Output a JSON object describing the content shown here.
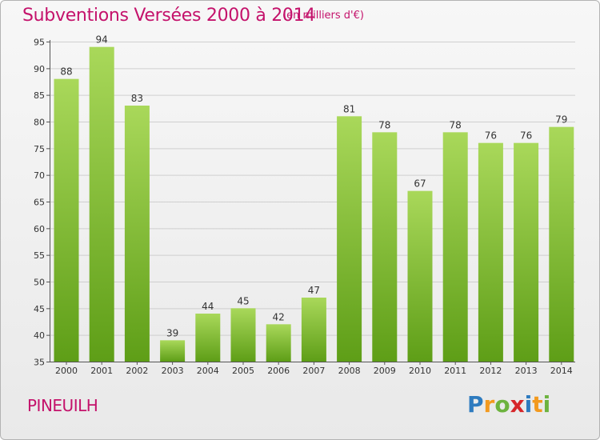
{
  "header": {
    "title": "Subventions Versées 2000 à 2014",
    "subtitle": "(en milliers d'€)"
  },
  "footer": {
    "commune": "PINEUILH",
    "logo_letters": [
      "P",
      "r",
      "o",
      "x",
      "i",
      "t",
      "i"
    ],
    "logo_colors": [
      "#2e7bbf",
      "#f39a1f",
      "#6db33f",
      "#d6262a",
      "#2e7bbf",
      "#f39a1f",
      "#6db33f"
    ]
  },
  "colors": {
    "bar_top": "#a9d85a",
    "bar_bottom": "#5e9e17",
    "grid": "#cfcfcf",
    "title": "#c4126b"
  },
  "chart_data": {
    "type": "bar",
    "title": "Subventions Versées 2000 à 2014",
    "subtitle": "(en milliers d'€)",
    "categories": [
      "2000",
      "2001",
      "2002",
      "2003",
      "2004",
      "2005",
      "2006",
      "2007",
      "2008",
      "2009",
      "2010",
      "2011",
      "2012",
      "2013",
      "2014"
    ],
    "values": [
      88,
      94,
      83,
      39,
      44,
      45,
      42,
      47,
      81,
      78,
      67,
      78,
      76,
      76,
      79
    ],
    "ylim": [
      35,
      95
    ],
    "yticks": [
      35,
      40,
      45,
      50,
      55,
      60,
      65,
      70,
      75,
      80,
      85,
      90,
      95
    ],
    "grid": true,
    "xlabel": "",
    "ylabel": ""
  }
}
